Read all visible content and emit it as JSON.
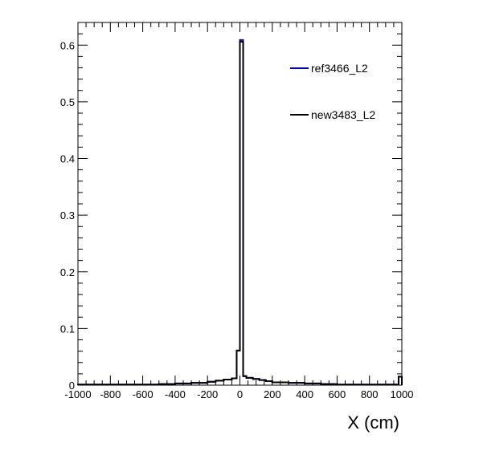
{
  "chart_data": {
    "type": "line",
    "step": true,
    "title": "",
    "xlabel": "X (cm)",
    "ylabel": "",
    "xlim": [
      -1000,
      1000
    ],
    "ylim": [
      0,
      0.64
    ],
    "x_ticks": [
      -1000,
      -800,
      -600,
      -400,
      -200,
      0,
      200,
      400,
      600,
      800,
      1000
    ],
    "x_tick_labels": [
      "-1000",
      "-800",
      "-600",
      "-400",
      "-200",
      "0",
      "200",
      "400",
      "600",
      "800",
      "1000"
    ],
    "y_ticks": [
      0,
      0.1,
      0.2,
      0.3,
      0.4,
      0.5,
      0.6
    ],
    "y_tick_labels": [
      "0",
      "0.1",
      "0.2",
      "0.3",
      "0.4",
      "0.5",
      "0.6"
    ],
    "grid": false,
    "legend_position": "top-right",
    "bin_edges": [
      -1000,
      -900,
      -800,
      -700,
      -600,
      -500,
      -400,
      -300,
      -200,
      -150,
      -100,
      -50,
      -20,
      0,
      20,
      40,
      80,
      120,
      160,
      200,
      300,
      400,
      500,
      600,
      700,
      800,
      900,
      980,
      1000
    ],
    "series": [
      {
        "name": "ref3466_L2",
        "color": "#0000cc",
        "values": [
          0.001,
          0.001,
          0.001,
          0.001,
          0.001,
          0.002,
          0.003,
          0.004,
          0.006,
          0.008,
          0.01,
          0.012,
          0.061,
          0.609,
          0.016,
          0.013,
          0.011,
          0.009,
          0.007,
          0.005,
          0.004,
          0.003,
          0.002,
          0.001,
          0.001,
          0.001,
          0.001,
          0.015
        ]
      },
      {
        "name": "new3483_L2",
        "color": "#000000",
        "values": [
          0.001,
          0.001,
          0.001,
          0.001,
          0.001,
          0.002,
          0.003,
          0.004,
          0.006,
          0.008,
          0.01,
          0.012,
          0.061,
          0.606,
          0.016,
          0.013,
          0.011,
          0.009,
          0.007,
          0.005,
          0.004,
          0.003,
          0.002,
          0.001,
          0.001,
          0.001,
          0.001,
          0.015
        ]
      }
    ]
  }
}
